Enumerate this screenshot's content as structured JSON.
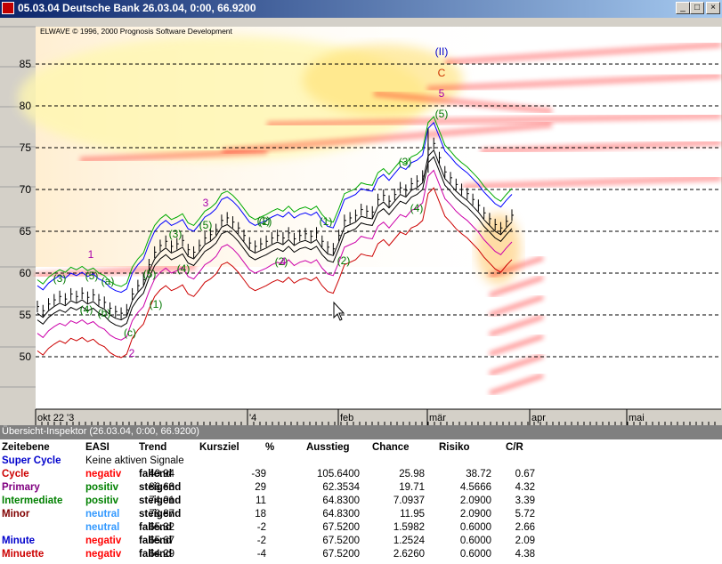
{
  "window": {
    "title": "05.03.04 Deutsche Bank  26.03.04, 0:00, 66.9200",
    "controls": [
      "_",
      "□",
      "×"
    ]
  },
  "chart": {
    "copyright": "ELWAVE © 1996, 2000 Prognosis Software Development",
    "y_ticks": [
      "85",
      "80",
      "75",
      "70",
      "65",
      "60",
      "55",
      "50"
    ],
    "x_ticks": [
      "okt 22 '3",
      "'4",
      "feb",
      "mär",
      "apr",
      "mai"
    ],
    "colors": {
      "background": "#ffffff",
      "heat": "#ff0000",
      "band_green": "#00aa00",
      "band_blue": "#0000ff",
      "band_red": "#cc0000",
      "band_magenta": "#cc00aa",
      "candle": "#000000"
    },
    "wave_labels": [
      {
        "text": "(II)",
        "color": "#0000cc"
      },
      {
        "text": "C",
        "color": "#cc3300"
      },
      {
        "text": "5",
        "color": "#aa00aa"
      },
      {
        "text": "(5)",
        "color": "#007700"
      },
      {
        "text": "(3)",
        "color": "#007700"
      },
      {
        "text": "(4)",
        "color": "#007700"
      },
      {
        "text": "3",
        "color": "#aa00aa"
      },
      {
        "text": "(5)",
        "color": "#007700"
      },
      {
        "text": "(3)",
        "color": "#007700"
      },
      {
        "text": "(4)",
        "color": "#007700"
      },
      {
        "text": "(1)",
        "color": "#007700"
      },
      {
        "text": "(2)",
        "color": "#007700"
      },
      {
        "text": "1",
        "color": "#aa00aa"
      },
      {
        "text": "(3)",
        "color": "#007700"
      },
      {
        "text": "(5)",
        "color": "#007700"
      },
      {
        "text": "(a)",
        "color": "#007700"
      },
      {
        "text": "(4)",
        "color": "#007700"
      },
      {
        "text": "(b)",
        "color": "#007700"
      },
      {
        "text": "(c)",
        "color": "#007700"
      },
      {
        "text": "(5)",
        "color": "#007700"
      },
      {
        "text": "2",
        "color": "#aa00aa"
      },
      {
        "text": "(1)",
        "color": "#007700"
      },
      {
        "text": "(2)",
        "color": "#007700"
      },
      {
        "text": "(2)",
        "color": "#007700"
      },
      {
        "text": "4",
        "color": "#aa00aa"
      },
      {
        "text": "(1)",
        "color": "#007700"
      }
    ]
  },
  "panel": {
    "title": "Übersicht-Inspektor (26.03.04, 0:00, 66.9200)",
    "headers": [
      "Zeitebene",
      "EASI",
      "Trend",
      "Kursziel",
      "%",
      "Ausstieg",
      "Chance",
      "Risiko",
      "C/R"
    ],
    "rows": [
      {
        "level": "Super Cycle",
        "level_color": "#0000cc",
        "easi": "Keine aktiven Signale",
        "easi_color": "#000000",
        "trend": "",
        "kursziel": "",
        "pct": "",
        "ausstieg": "",
        "chance": "",
        "risiko": "",
        "cr": ""
      },
      {
        "level": "Cycle",
        "level_color": "#cc0000",
        "easi": "negativ",
        "easi_color": "#ff0000",
        "trend": "fallend",
        "kursziel": "40.94",
        "pct": "-39",
        "ausstieg": "105.6400",
        "chance": "25.98",
        "risiko": "38.72",
        "cr": "0.67"
      },
      {
        "level": "Primary",
        "level_color": "#800080",
        "easi": "positiv",
        "easi_color": "#008000",
        "trend": "steigend",
        "kursziel": "86.63",
        "pct": "29",
        "ausstieg": "62.3534",
        "chance": "19.71",
        "risiko": "4.5666",
        "cr": "4.32"
      },
      {
        "level": "Intermediate",
        "level_color": "#008000",
        "easi": "positiv",
        "easi_color": "#008000",
        "trend": "steigend",
        "kursziel": "74.01",
        "pct": "11",
        "ausstieg": "64.8300",
        "chance": "7.0937",
        "risiko": "2.0900",
        "cr": "3.39"
      },
      {
        "level": "Minor",
        "level_color": "#800000",
        "easi": "neutral",
        "easi_color": "#3399ff",
        "trend": "steigend",
        "kursziel": "78.87",
        "pct": "18",
        "ausstieg": "64.8300",
        "chance": "11.95",
        "risiko": "2.0900",
        "cr": "5.72"
      },
      {
        "level": "",
        "level_color": "#000000",
        "easi": "neutral",
        "easi_color": "#3399ff",
        "trend": "fallend",
        "kursziel": "65.32",
        "pct": "-2",
        "ausstieg": "67.5200",
        "chance": "1.5982",
        "risiko": "0.6000",
        "cr": "2.66"
      },
      {
        "level": "Minute",
        "level_color": "#0000cc",
        "easi": "negativ",
        "easi_color": "#ff0000",
        "trend": "fallend",
        "kursziel": "65.67",
        "pct": "-2",
        "ausstieg": "67.5200",
        "chance": "1.2524",
        "risiko": "0.6000",
        "cr": "2.09"
      },
      {
        "level": "Minuette",
        "level_color": "#cc0000",
        "easi": "negativ",
        "easi_color": "#ff0000",
        "trend": "fallend",
        "kursziel": "64.29",
        "pct": "-4",
        "ausstieg": "67.5200",
        "chance": "2.6260",
        "risiko": "0.6000",
        "cr": "4.38"
      }
    ]
  }
}
